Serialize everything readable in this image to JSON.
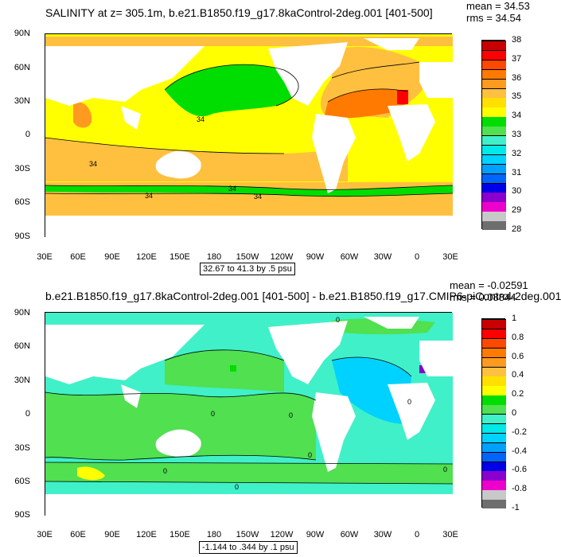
{
  "panels": [
    {
      "title": "SALINITY at z= 305.1m, b.e21.B1850.f19_g17.8kaControl-2deg.001 [401-500]",
      "mean_text": "mean = 34.53",
      "rms_text": "rms = 34.54",
      "range_text": "32.67 to 41.3 by .5 psu",
      "y_ticks": [
        "90N",
        "60N",
        "30N",
        "0",
        "30S",
        "60S",
        "90S"
      ],
      "x_ticks": [
        "30E",
        "60E",
        "90E",
        "120E",
        "150E",
        "180",
        "150W",
        "120W",
        "90W",
        "60W",
        "30W",
        "0",
        "30E"
      ],
      "colorbar_labels": [
        "38",
        "37",
        "36",
        "35",
        "34",
        "33",
        "32",
        "31",
        "30",
        "29",
        "28"
      ],
      "contour_labels": [
        "34",
        "34",
        "34",
        "34",
        "34"
      ],
      "colors": [
        "#6e6e6e",
        "#c8c8c8",
        "#ee00cc",
        "#8a00cc",
        "#0000e8",
        "#0064ff",
        "#00a0ff",
        "#00d2ff",
        "#00e8e8",
        "#40f0c8",
        "#50e050",
        "#00dd00",
        "#ffff00",
        "#ffe000",
        "#ffc040",
        "#ff9a20",
        "#ff7a00",
        "#ff4800",
        "#ff0000",
        "#c80000"
      ]
    },
    {
      "title": "b.e21.B1850.f19_g17.8kaControl-2deg.001 [401-500] - b.e21.B1850.f19_g17.CMIP6-piControl-2deg.001",
      "mean_text": "mean = -0.02591",
      "rms_text": "rms = 0.08844",
      "range_text": "-1.144 to .344 by .1 psu",
      "y_ticks": [
        "90N",
        "60N",
        "30N",
        "0",
        "30S",
        "60S",
        "90S"
      ],
      "x_ticks": [
        "30E",
        "60E",
        "90E",
        "120E",
        "150E",
        "180",
        "150W",
        "120W",
        "90W",
        "60W",
        "30W",
        "0",
        "30E"
      ],
      "colorbar_labels": [
        "1",
        "0.8",
        "0.6",
        "0.4",
        "0.2",
        "0",
        "-0.2",
        "-0.4",
        "-0.6",
        "-0.8",
        "-1"
      ],
      "contour_labels": [
        "0",
        "0",
        "0",
        "0",
        "0",
        "0",
        "0",
        "0"
      ],
      "colors": [
        "#6e6e6e",
        "#c8c8c8",
        "#ee00cc",
        "#8a00cc",
        "#0000e8",
        "#0064ff",
        "#00a0ff",
        "#00d2ff",
        "#00e8e8",
        "#40f0c8",
        "#50e050",
        "#00dd00",
        "#ffff00",
        "#ffe000",
        "#ffc040",
        "#ff9a20",
        "#ff7a00",
        "#ff4800",
        "#ff0000",
        "#c80000"
      ]
    }
  ]
}
